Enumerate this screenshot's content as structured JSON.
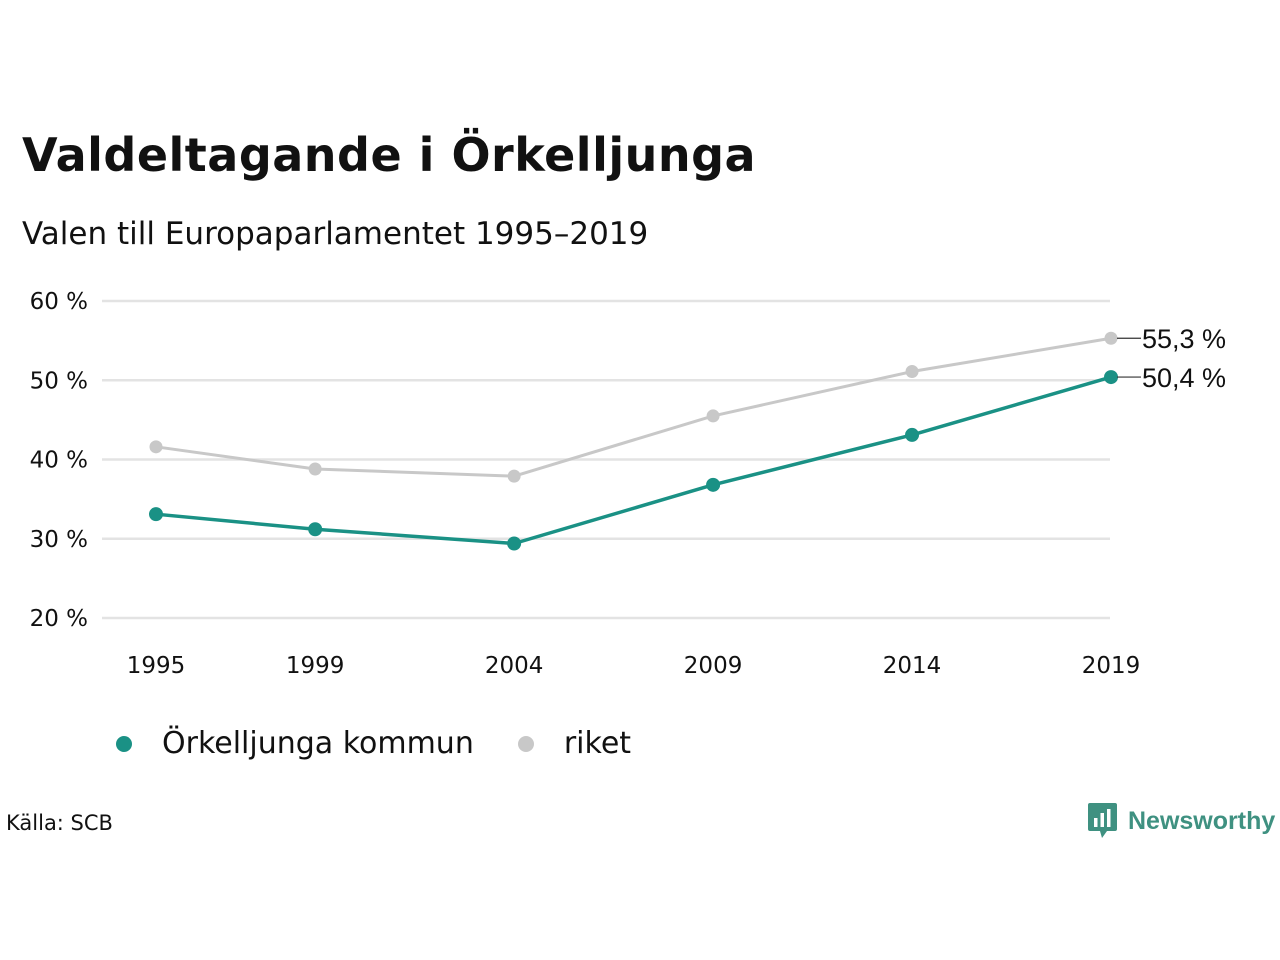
{
  "header": {
    "title": "Valdeltagande i Örkelljunga",
    "subtitle": "Valen till Europaparlamentet 1995–2019"
  },
  "colors": {
    "primary": "#1a9185",
    "secondary": "#c8c8c8",
    "grid": "#e3e3e3",
    "brand": "#3f9181"
  },
  "chart_data": {
    "type": "line",
    "categories": [
      "1995",
      "1999",
      "2004",
      "2009",
      "2014",
      "2019"
    ],
    "x": [
      1995,
      1999,
      2004,
      2009,
      2014,
      2019
    ],
    "ylim": [
      20,
      60
    ],
    "yticks": [
      20,
      30,
      40,
      50,
      60
    ],
    "ytick_labels": [
      "20 %",
      "30 %",
      "40 %",
      "50 %",
      "60 %"
    ],
    "grid": true,
    "legend_position": "bottom-left",
    "series": [
      {
        "name": "Örkelljunga kommun",
        "color": "#1a9185",
        "values": [
          33.1,
          31.2,
          29.4,
          36.8,
          43.1,
          50.4
        ],
        "end_label": "50,4 %"
      },
      {
        "name": "riket",
        "color": "#c8c8c8",
        "values": [
          41.6,
          38.8,
          37.9,
          45.5,
          51.1,
          55.3
        ],
        "end_label": "55,3 %"
      }
    ]
  },
  "legend": {
    "items": [
      {
        "label": "Örkelljunga kommun"
      },
      {
        "label": "riket"
      }
    ]
  },
  "footer": {
    "source": "Källa: SCB",
    "brand": "Newsworthy",
    "brand_icon": "bar-chart-icon"
  }
}
